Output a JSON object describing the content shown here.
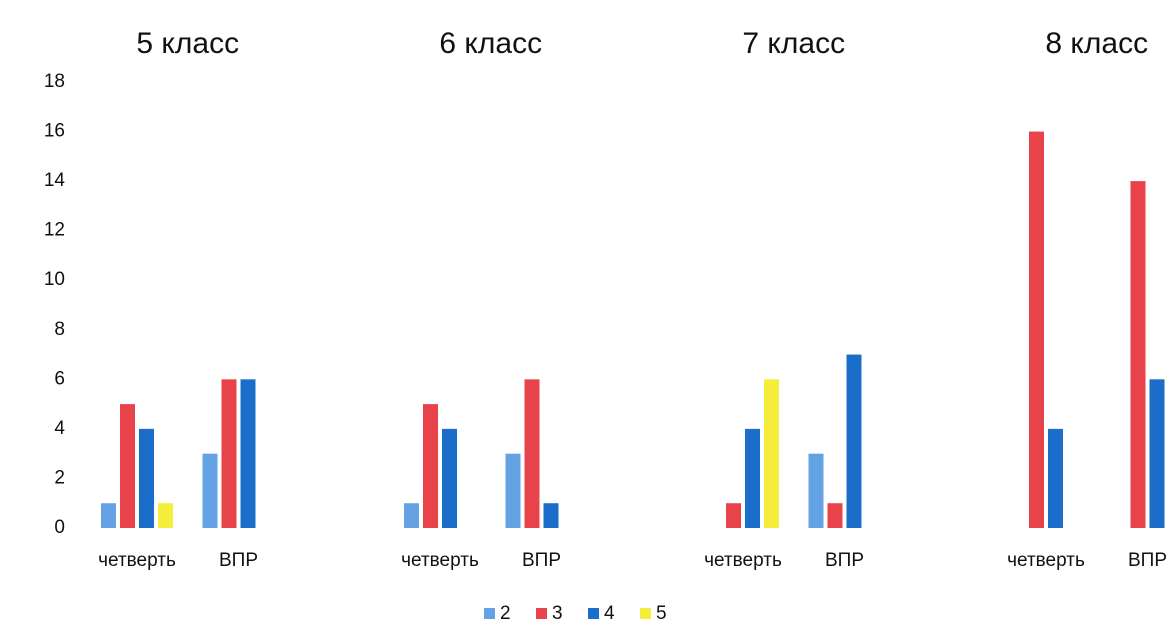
{
  "chart_data": {
    "type": "bar",
    "groups": [
      {
        "title": "5 класс"
      },
      {
        "title": "6 класс"
      },
      {
        "title": "7 класс"
      },
      {
        "title": "8 класс"
      }
    ],
    "categories": [
      "четверть",
      "ВПР",
      "четверть",
      "ВПР",
      "четверть",
      "ВПР",
      "четверть",
      "ВПР"
    ],
    "series": [
      {
        "name": "2",
        "color": "#64a2e4",
        "values": [
          1,
          3,
          1,
          3,
          0,
          3,
          0,
          0
        ]
      },
      {
        "name": "3",
        "color": "#e8434b",
        "values": [
          5,
          6,
          5,
          6,
          1,
          1,
          16,
          14
        ]
      },
      {
        "name": "4",
        "color": "#1a6dc8",
        "values": [
          4,
          6,
          4,
          1,
          4,
          7,
          4,
          6
        ]
      },
      {
        "name": "5",
        "color": "#f4ee3a",
        "values": [
          1,
          0,
          0,
          0,
          6,
          0,
          0,
          0
        ]
      }
    ],
    "ylim": [
      0,
      18
    ],
    "yticks": [
      0,
      2,
      4,
      6,
      8,
      10,
      12,
      14,
      16,
      18
    ],
    "grid": false,
    "legend": "bottom"
  }
}
